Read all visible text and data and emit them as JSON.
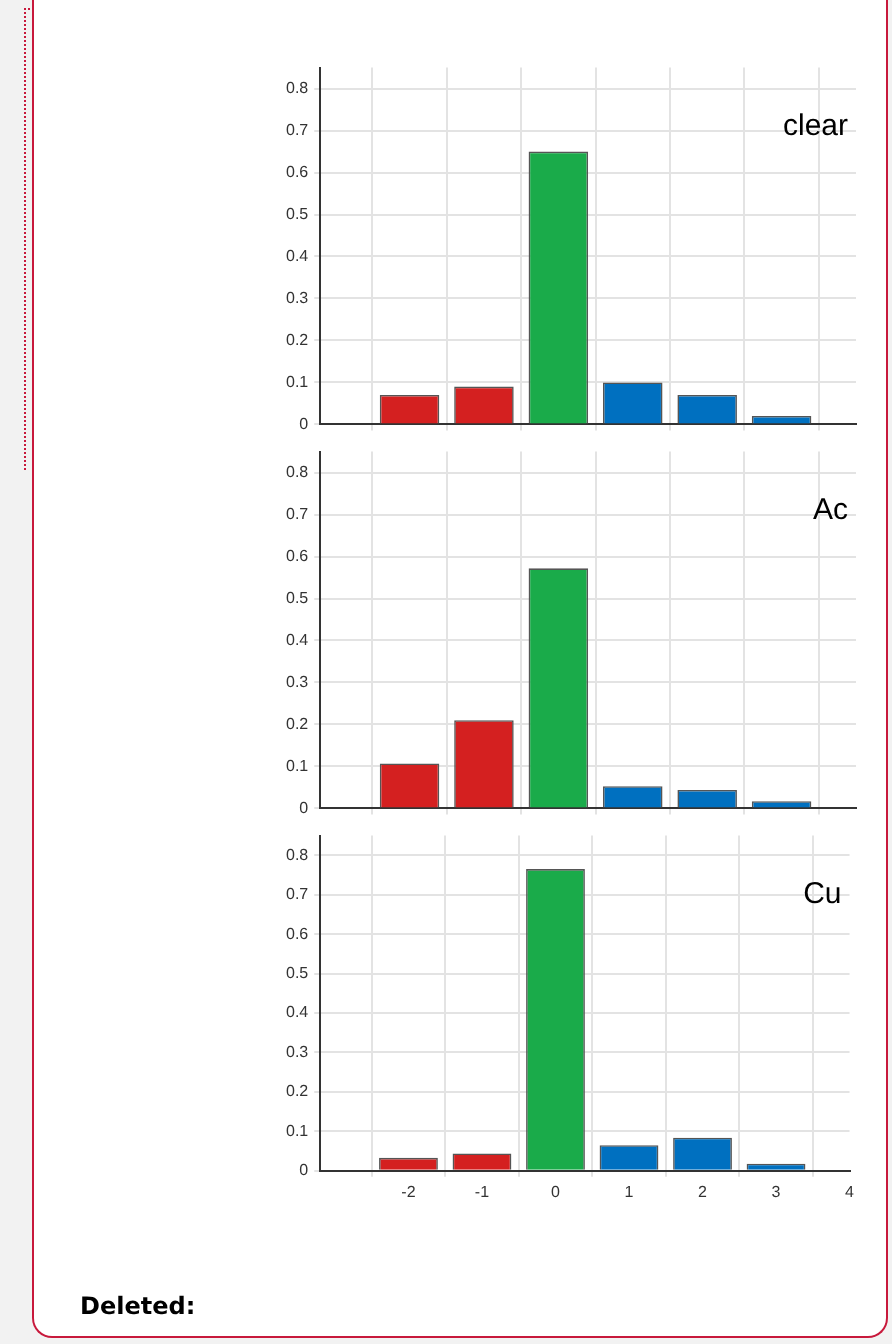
{
  "chart_data": [
    {
      "type": "bar",
      "title": "clear",
      "x": [
        -2,
        -1,
        0,
        1,
        2,
        3
      ],
      "values": [
        0.07,
        0.09,
        0.65,
        0.1,
        0.07,
        0.02
      ],
      "colors": [
        "#d42020",
        "#d42020",
        "#1aab4a",
        "#0070c0",
        "#0070c0",
        "#0070c0"
      ],
      "xlim": [
        -3.2,
        4
      ],
      "xticks": [
        -2,
        -1,
        0,
        1,
        2,
        3,
        4
      ],
      "ylim": [
        0,
        0.85
      ],
      "yticks": [
        0,
        0.1,
        0.2,
        0.3,
        0.4,
        0.5,
        0.6,
        0.7,
        0.8
      ],
      "grid": true,
      "tick_labels": "y"
    },
    {
      "type": "bar",
      "title": "Ac",
      "x": [
        -2,
        -1,
        0,
        1,
        2,
        3
      ],
      "values": [
        0.107,
        0.21,
        0.572,
        0.053,
        0.044,
        0.017
      ],
      "colors": [
        "#d42020",
        "#d42020",
        "#1aab4a",
        "#0070c0",
        "#0070c0",
        "#0070c0"
      ],
      "xlim": [
        -3.2,
        4
      ],
      "xticks": [
        -2,
        -1,
        0,
        1,
        2,
        3,
        4
      ],
      "ylim": [
        0,
        0.85
      ],
      "yticks": [
        0,
        0.1,
        0.2,
        0.3,
        0.4,
        0.5,
        0.6,
        0.7,
        0.8
      ],
      "grid": true,
      "tick_labels": "y"
    },
    {
      "type": "bar",
      "title": "Cu",
      "x": [
        -2,
        -1,
        0,
        1,
        2,
        3
      ],
      "values": [
        0.033,
        0.044,
        0.765,
        0.065,
        0.084,
        0.018
      ],
      "colors": [
        "#d42020",
        "#d42020",
        "#1aab4a",
        "#0070c0",
        "#0070c0",
        "#0070c0"
      ],
      "xlim": [
        -3.2,
        4
      ],
      "xticks": [
        -2,
        -1,
        0,
        1,
        2,
        3,
        4
      ],
      "ylim": [
        0,
        0.85
      ],
      "yticks": [
        0,
        0.1,
        0.2,
        0.3,
        0.4,
        0.5,
        0.6,
        0.7,
        0.8
      ],
      "grid": true,
      "annotations": [
        "Deleted:"
      ]
    }
  ]
}
